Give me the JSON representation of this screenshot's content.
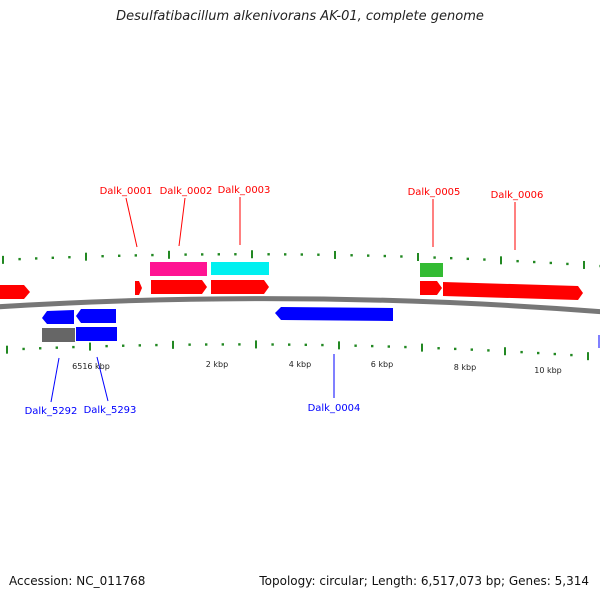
{
  "title": "Desulfatibacillum alkenivorans AK-01, complete genome",
  "genes": {
    "dalk_0001": "Dalk_0001",
    "dalk_0002": "Dalk_0002",
    "dalk_0003": "Dalk_0003",
    "dalk_0004": "Dalk_0004",
    "dalk_0005": "Dalk_0005",
    "dalk_0006": "Dalk_0006",
    "dalk_5292": "Dalk_5292",
    "dalk_5293": "Dalk_5293"
  },
  "scale": [
    "6516 kbp",
    "2 kbp",
    "4 kbp",
    "6 kbp",
    "8 kbp",
    "10 kbp"
  ],
  "footer": {
    "accession": "Accession: NC_011768",
    "summary": "Topology: circular; Length: 6,517,073 bp; Genes: 5,314"
  },
  "colors": {
    "forward": "#ff0000",
    "reverse": "#0000ff",
    "rna": "#ff1493",
    "cyan": "#00ffff",
    "green": "#33bb33",
    "grey": "#666666",
    "tick": "#228822"
  }
}
